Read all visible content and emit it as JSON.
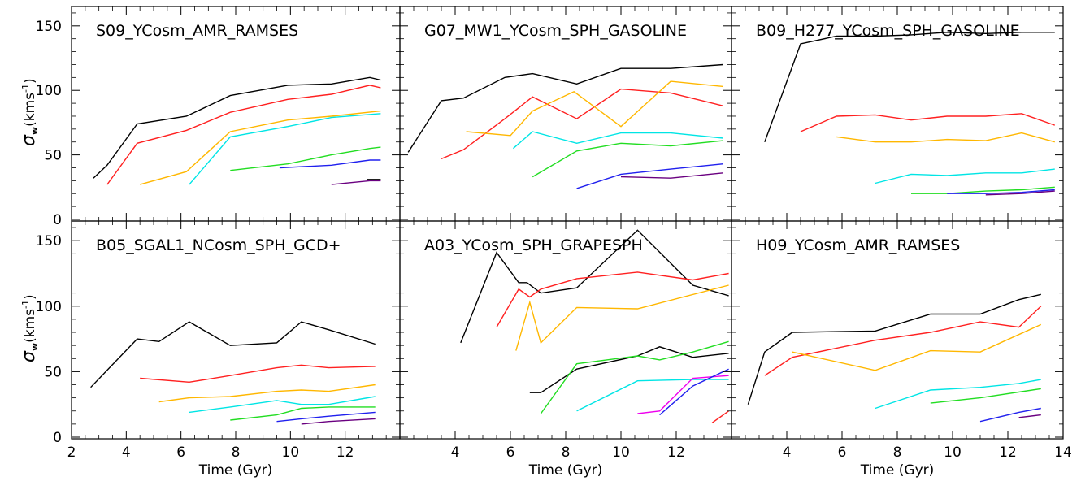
{
  "chart_data": [
    {
      "type": "line",
      "title": "S09_YCosm_AMR_RAMSES",
      "xlabel": "",
      "ylabel": "σw(kms-1)",
      "xlim": [
        2,
        14
      ],
      "ylim": [
        0,
        165
      ],
      "series": [
        {
          "color": "#000000",
          "x": [
            2.8,
            3.3,
            4.4,
            6.2,
            7.8,
            9.9,
            11.5,
            12.9,
            13.3
          ],
          "y": [
            32,
            42,
            74,
            80,
            96,
            104,
            105,
            110,
            108
          ]
        },
        {
          "color": "#ff2020",
          "x": [
            3.3,
            4.4,
            6.2,
            7.8,
            9.9,
            11.5,
            12.9,
            13.3
          ],
          "y": [
            27,
            59,
            69,
            83,
            93,
            97,
            104,
            102
          ]
        },
        {
          "color": "#ffb700",
          "x": [
            4.5,
            6.2,
            7.8,
            9.9,
            11.5,
            13.3
          ],
          "y": [
            27,
            37,
            68,
            77,
            80,
            84
          ]
        },
        {
          "color": "#00e5e5",
          "x": [
            6.3,
            7.8,
            9.9,
            11.5,
            13.3
          ],
          "y": [
            27,
            64,
            72,
            79,
            82
          ]
        },
        {
          "color": "#22dd22",
          "x": [
            7.8,
            9.9,
            11.5,
            12.9,
            13.3
          ],
          "y": [
            38,
            43,
            50,
            55,
            56
          ]
        },
        {
          "color": "#2020ee",
          "x": [
            9.6,
            11.5,
            12.9,
            13.3
          ],
          "y": [
            40,
            42,
            46,
            46
          ]
        },
        {
          "color": "#6a0080",
          "x": [
            11.5,
            12.9,
            13.3
          ],
          "y": [
            27,
            30,
            30
          ]
        },
        {
          "color": "#000000",
          "x": [
            12.8,
            13.3
          ],
          "y": [
            31,
            31
          ]
        }
      ]
    },
    {
      "type": "line",
      "title": "G07_MW1_YCosm_SPH_GASOLINE",
      "xlabel": "",
      "ylabel": "",
      "xlim": [
        2,
        14
      ],
      "ylim": [
        0,
        165
      ],
      "series": [
        {
          "color": "#000000",
          "x": [
            2.3,
            3.5,
            4.3,
            5.8,
            6.8,
            8.4,
            10.0,
            11.8,
            13.7
          ],
          "y": [
            52,
            92,
            94,
            110,
            113,
            105,
            117,
            117,
            120
          ]
        },
        {
          "color": "#ff2020",
          "x": [
            3.5,
            4.3,
            5.8,
            6.8,
            8.4,
            10.0,
            11.8,
            13.7
          ],
          "y": [
            47,
            54,
            78,
            95,
            78,
            101,
            98,
            88
          ]
        },
        {
          "color": "#ffb700",
          "x": [
            4.4,
            6.0,
            6.8,
            8.3,
            10.0,
            11.8,
            13.7
          ],
          "y": [
            68,
            65,
            84,
            99,
            72,
            107,
            103
          ]
        },
        {
          "color": "#00e5e5",
          "x": [
            6.1,
            6.8,
            8.4,
            10.0,
            11.8,
            13.7
          ],
          "y": [
            55,
            68,
            59,
            67,
            67,
            63
          ]
        },
        {
          "color": "#22dd22",
          "x": [
            6.8,
            8.4,
            10.0,
            11.8,
            13.7
          ],
          "y": [
            33,
            53,
            59,
            57,
            61
          ]
        },
        {
          "color": "#2020ee",
          "x": [
            8.4,
            10.0,
            11.8,
            13.7
          ],
          "y": [
            24,
            35,
            39,
            43
          ]
        },
        {
          "color": "#6a0080",
          "x": [
            10.0,
            11.8,
            13.7
          ],
          "y": [
            33,
            32,
            36
          ]
        }
      ]
    },
    {
      "type": "line",
      "title": "B09_H277_YCosm_SPH_GASOLINE",
      "xlabel": "",
      "ylabel": "",
      "xlim": [
        2,
        14
      ],
      "ylim": [
        0,
        165
      ],
      "series": [
        {
          "color": "#000000",
          "x": [
            3.2,
            4.5,
            5.8,
            7.2,
            8.5,
            9.8,
            11.2,
            12.5,
            13.7
          ],
          "y": [
            60,
            136,
            142,
            142,
            143,
            145,
            144,
            145,
            145
          ]
        },
        {
          "color": "#ff2020",
          "x": [
            4.5,
            5.8,
            7.2,
            8.5,
            9.8,
            11.2,
            12.5,
            13.7
          ],
          "y": [
            68,
            80,
            81,
            77,
            80,
            80,
            82,
            73
          ]
        },
        {
          "color": "#ffb700",
          "x": [
            5.8,
            7.2,
            8.5,
            9.8,
            11.2,
            12.5,
            13.7
          ],
          "y": [
            64,
            60,
            60,
            62,
            61,
            67,
            60
          ]
        },
        {
          "color": "#00e5e5",
          "x": [
            7.2,
            8.5,
            9.8,
            11.2,
            12.5,
            13.7
          ],
          "y": [
            28,
            35,
            34,
            36,
            36,
            39
          ]
        },
        {
          "color": "#22dd22",
          "x": [
            8.5,
            9.8,
            11.2,
            12.5,
            13.7
          ],
          "y": [
            20,
            20,
            22,
            23,
            25
          ]
        },
        {
          "color": "#2020ee",
          "x": [
            9.8,
            11.2,
            12.5,
            13.7
          ],
          "y": [
            20,
            20,
            21,
            23
          ]
        },
        {
          "color": "#6a0080",
          "x": [
            11.2,
            12.5,
            13.7
          ],
          "y": [
            19,
            20,
            22
          ]
        }
      ]
    },
    {
      "type": "line",
      "title": "B05_SGAL1_NCosm_SPH_GCD+",
      "xlabel": "Time (Gyr)",
      "ylabel": "σw(kms-1)",
      "xlim": [
        2,
        14
      ],
      "ylim": [
        0,
        165
      ],
      "series": [
        {
          "color": "#000000",
          "x": [
            2.7,
            4.4,
            5.2,
            6.3,
            7.8,
            9.5,
            10.4,
            11.4,
            13.1
          ],
          "y": [
            38,
            75,
            73,
            88,
            70,
            72,
            88,
            82,
            71
          ]
        },
        {
          "color": "#ff2020",
          "x": [
            4.5,
            6.3,
            7.8,
            9.5,
            10.4,
            11.4,
            13.1
          ],
          "y": [
            45,
            42,
            47,
            53,
            55,
            53,
            54
          ]
        },
        {
          "color": "#ffb700",
          "x": [
            5.2,
            6.3,
            7.8,
            9.5,
            10.4,
            11.4,
            13.1
          ],
          "y": [
            27,
            30,
            31,
            35,
            36,
            35,
            40
          ]
        },
        {
          "color": "#00e5e5",
          "x": [
            6.3,
            7.8,
            9.5,
            10.4,
            11.4,
            13.1
          ],
          "y": [
            19,
            23,
            28,
            25,
            25,
            31
          ]
        },
        {
          "color": "#22dd22",
          "x": [
            7.8,
            9.5,
            10.4,
            11.4,
            13.1
          ],
          "y": [
            13,
            17,
            22,
            23,
            23
          ]
        },
        {
          "color": "#2020ee",
          "x": [
            9.5,
            10.4,
            11.4,
            13.1
          ],
          "y": [
            12,
            14,
            16,
            19
          ]
        },
        {
          "color": "#6a0080",
          "x": [
            10.4,
            11.4,
            13.1
          ],
          "y": [
            10,
            12,
            14
          ]
        }
      ]
    },
    {
      "type": "line",
      "title": "A03_YCosm_SPH_GRAPESPH",
      "xlabel": "Time (Gyr)",
      "ylabel": "",
      "xlim": [
        2,
        14
      ],
      "ylim": [
        0,
        165
      ],
      "series": [
        {
          "color": "#000000",
          "x": [
            4.2,
            5.5,
            6.3,
            6.6,
            7.1,
            8.4,
            10.6,
            12.6,
            13.9
          ],
          "y": [
            72,
            141,
            118,
            118,
            110,
            114,
            158,
            116,
            108
          ]
        },
        {
          "color": "#ff2020",
          "x": [
            5.5,
            6.3,
            6.7,
            7.1,
            8.4,
            10.6,
            12.6,
            13.9
          ],
          "y": [
            84,
            113,
            107,
            113,
            121,
            126,
            120,
            125
          ]
        },
        {
          "color": "#ffb700",
          "x": [
            6.2,
            6.7,
            7.1,
            8.4,
            10.6,
            13.9
          ],
          "y": [
            66,
            103,
            72,
            99,
            98,
            116
          ]
        },
        {
          "color": "#000000",
          "x": [
            6.7,
            7.1,
            8.4,
            10.6,
            11.4,
            12.6,
            13.9
          ],
          "y": [
            34,
            34,
            52,
            62,
            69,
            61,
            64
          ]
        },
        {
          "color": "#22dd22",
          "x": [
            7.1,
            8.4,
            10.6,
            11.4,
            12.6,
            13.9
          ],
          "y": [
            18,
            56,
            62,
            59,
            65,
            73
          ]
        },
        {
          "color": "#00e5e5",
          "x": [
            8.4,
            10.6,
            12.6,
            13.9
          ],
          "y": [
            20,
            43,
            44,
            44
          ]
        },
        {
          "color": "#ee00ee",
          "x": [
            10.6,
            11.4,
            12.6,
            13.9
          ],
          "y": [
            18,
            20,
            45,
            47
          ]
        },
        {
          "color": "#2020ee",
          "x": [
            11.4,
            12.6,
            13.9
          ],
          "y": [
            17,
            39,
            52
          ]
        },
        {
          "color": "#ff2020",
          "x": [
            13.3,
            13.9
          ],
          "y": [
            11,
            20
          ]
        }
      ]
    },
    {
      "type": "line",
      "title": "H09_YCosm_AMR_RAMSES",
      "xlabel": "Time (Gyr)",
      "ylabel": "",
      "xlim": [
        2,
        14
      ],
      "ylim": [
        0,
        165
      ],
      "series": [
        {
          "color": "#000000",
          "x": [
            2.6,
            3.2,
            4.2,
            7.2,
            9.2,
            11.0,
            12.4,
            13.2
          ],
          "y": [
            25,
            65,
            80,
            81,
            94,
            94,
            105,
            109
          ]
        },
        {
          "color": "#ff2020",
          "x": [
            3.2,
            4.2,
            7.2,
            9.2,
            11.0,
            12.4,
            13.2
          ],
          "y": [
            47,
            61,
            74,
            80,
            88,
            84,
            100
          ]
        },
        {
          "color": "#ffb700",
          "x": [
            4.2,
            7.2,
            9.2,
            11.0,
            13.2
          ],
          "y": [
            65,
            51,
            66,
            65,
            86
          ]
        },
        {
          "color": "#00e5e5",
          "x": [
            7.2,
            9.2,
            11.0,
            12.4,
            13.2
          ],
          "y": [
            22,
            36,
            38,
            41,
            44
          ]
        },
        {
          "color": "#22dd22",
          "x": [
            9.2,
            11.0,
            13.2
          ],
          "y": [
            26,
            30,
            37
          ]
        },
        {
          "color": "#2020ee",
          "x": [
            11.0,
            12.4,
            13.2
          ],
          "y": [
            12,
            19,
            22
          ]
        },
        {
          "color": "#6a0080",
          "x": [
            12.4,
            13.2
          ],
          "y": [
            15,
            17
          ]
        }
      ]
    }
  ],
  "axes": {
    "yticks": [
      "0",
      "50",
      "100",
      "150"
    ],
    "xticks": [
      "2",
      "4",
      "6",
      "8",
      "10",
      "12",
      "14"
    ],
    "ylabel_main": "σ",
    "ylabel_sub": "w",
    "ylabel_unit": "(kms",
    "ylabel_exp": "-1",
    "ylabel_close": ")"
  }
}
